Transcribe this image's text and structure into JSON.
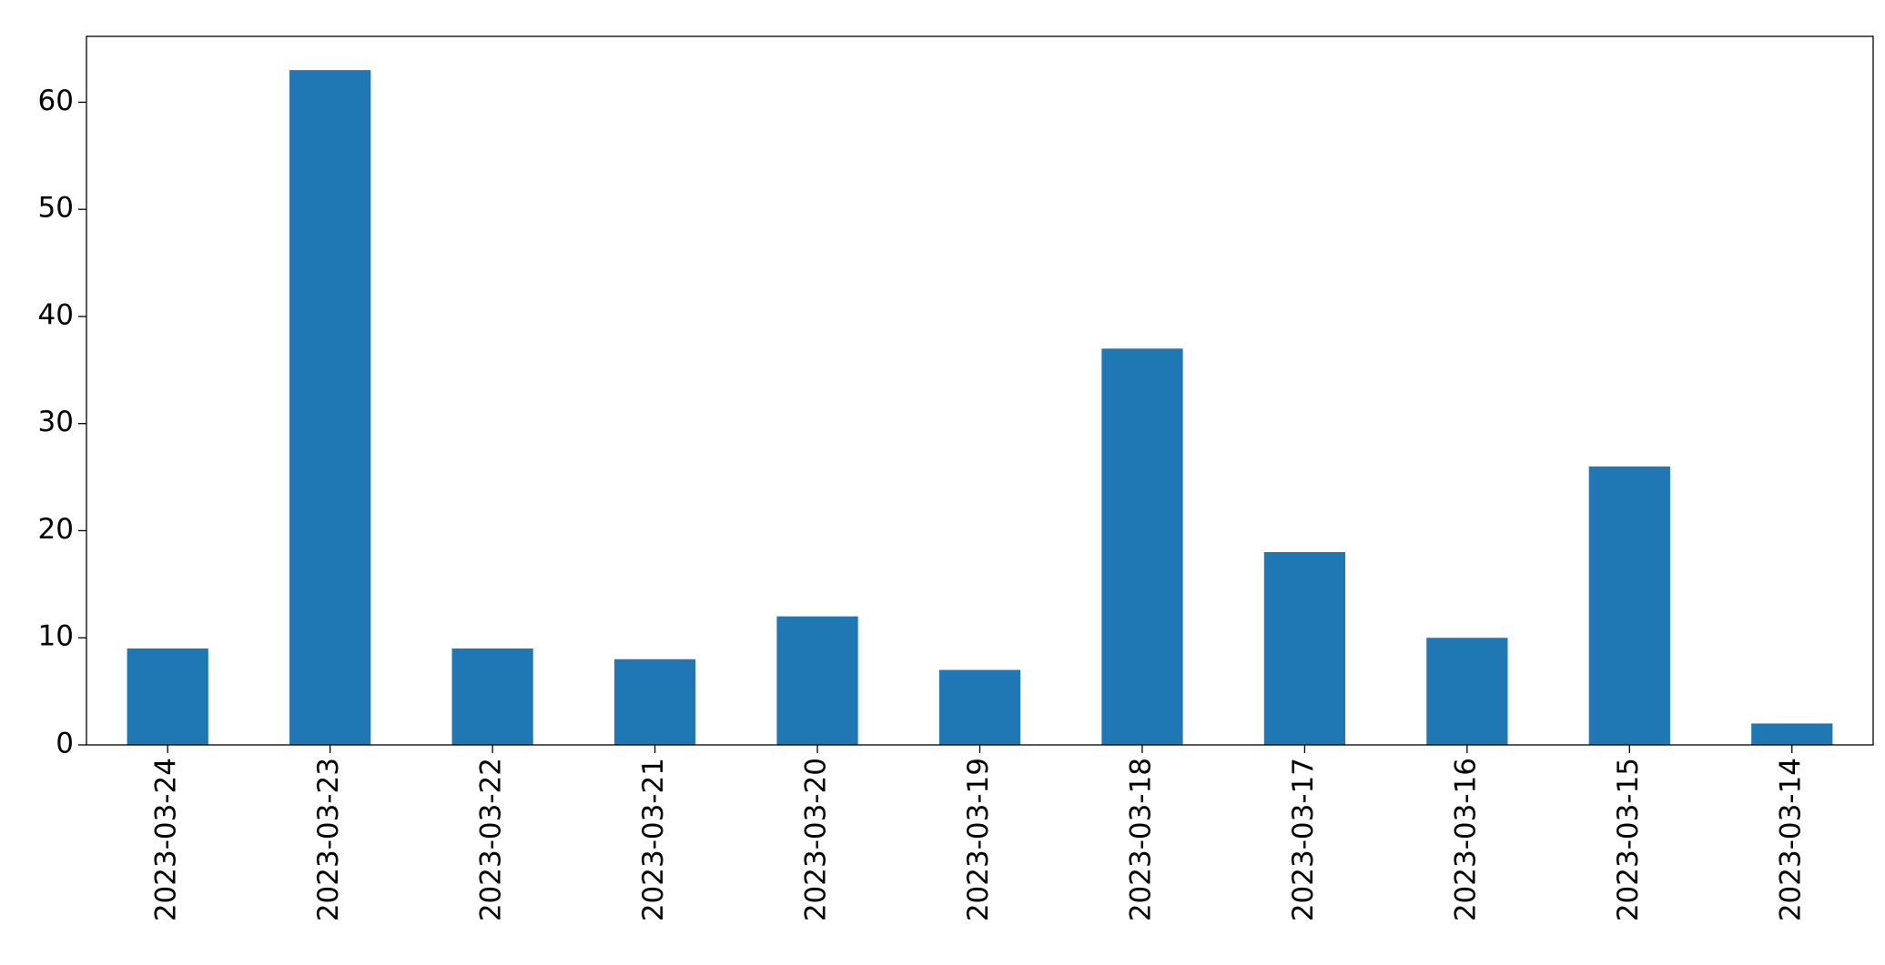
{
  "chart_data": {
    "type": "bar",
    "categories": [
      "2023-03-24",
      "2023-03-23",
      "2023-03-22",
      "2023-03-21",
      "2023-03-20",
      "2023-03-19",
      "2023-03-18",
      "2023-03-17",
      "2023-03-16",
      "2023-03-15",
      "2023-03-14"
    ],
    "values": [
      9,
      63,
      9,
      8,
      12,
      7,
      37,
      18,
      10,
      26,
      2
    ],
    "color": "#1f77b4",
    "ylim": [
      0,
      66.15
    ],
    "yticks": [
      0,
      10,
      20,
      30,
      40,
      50,
      60
    ],
    "grid": false
  }
}
